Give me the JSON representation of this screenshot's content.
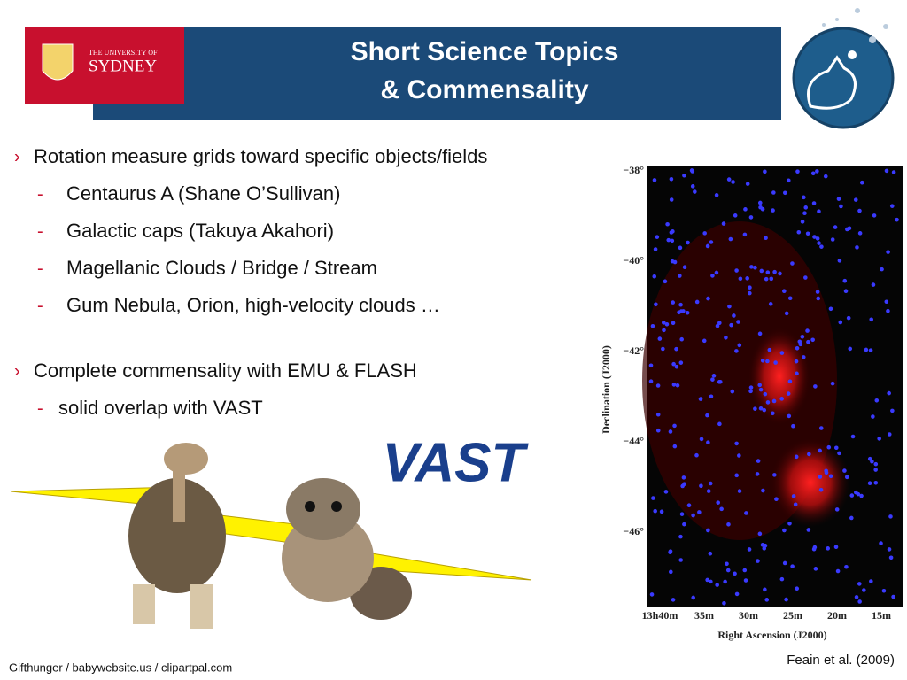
{
  "header": {
    "title_lines": [
      "Short Science Topics",
      "& Commensality"
    ],
    "logo_text": [
      "THE UNIVERSITY OF",
      "SYDNEY"
    ]
  },
  "bullets": [
    {
      "text": "Rotation measure grids toward specific objects/fields",
      "subitems": [
        "Centaurus A (Shane O’Sullivan)",
        "Galactic caps (Takuya Akahori)",
        "Magellanic Clouds / Bridge / Stream",
        "Gum Nebula, Orion, high-velocity clouds …"
      ]
    },
    {
      "text": "Complete commensality with EMU & FLASH",
      "subitems": [
        "solid overlap with VAST"
      ]
    }
  ],
  "vast_logo": "VAST",
  "figure": {
    "y_label": "Declination (J2000)",
    "y_ticks": [
      "−38°",
      "−40°",
      "−42°",
      "−44°",
      "−46°"
    ],
    "x_label": "Right Ascension (J2000)",
    "x_ticks": [
      "13h40m",
      "35m",
      "30m",
      "25m",
      "20m",
      "15m"
    ],
    "credit": "Feain et al. (2009)"
  },
  "image_credit": "Gifthunger / babywebsite.us / clipartpal.com"
}
